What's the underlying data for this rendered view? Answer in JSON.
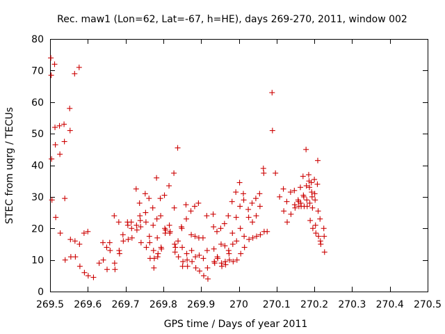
{
  "chart_data": {
    "type": "scatter",
    "title": "Rec. maw1 (Lon=62, Lat=-67, h=HE), days 269-270, 2011, window 002",
    "xlabel": "GPS time / Days of year 2011",
    "ylabel": "STEC from uqrg / TECUs",
    "xlim": [
      269.5,
      270.5
    ],
    "ylim": [
      0,
      80
    ],
    "x_ticks": [
      269.5,
      269.6,
      269.7,
      269.8,
      269.9,
      270.0,
      270.1,
      270.2,
      270.3,
      270.4,
      270.5
    ],
    "x_tick_labels": [
      "269.5",
      "269.6",
      "269.7",
      "269.8",
      "269.9",
      "270",
      "270.1",
      "270.2",
      "270.3",
      "270.4",
      "270.5"
    ],
    "y_ticks": [
      0,
      10,
      20,
      30,
      40,
      50,
      60,
      70,
      80
    ],
    "y_tick_labels": [
      "0",
      "10",
      "20",
      "30",
      "40",
      "50",
      "60",
      "70",
      "80"
    ],
    "grid": false,
    "marker": "plus",
    "marker_color": "#cc0000",
    "series": [
      {
        "points": [
          [
            269.502,
            74.0
          ],
          [
            269.503,
            68.5
          ],
          [
            269.504,
            42.0
          ],
          [
            269.505,
            29.0
          ],
          [
            269.512,
            72.0
          ],
          [
            269.513,
            52.0
          ],
          [
            269.514,
            46.5
          ],
          [
            269.515,
            23.5
          ],
          [
            269.525,
            52.5
          ],
          [
            269.526,
            43.5
          ],
          [
            269.527,
            18.5
          ],
          [
            269.537,
            53.0
          ],
          [
            269.538,
            47.5
          ],
          [
            269.539,
            29.5
          ],
          [
            269.54,
            10.0
          ],
          [
            269.552,
            58.0
          ],
          [
            269.553,
            51.0
          ],
          [
            269.554,
            16.5
          ],
          [
            269.555,
            11.0
          ],
          [
            269.565,
            69.0
          ],
          [
            269.566,
            16.0
          ],
          [
            269.567,
            11.0
          ],
          [
            269.577,
            71.0
          ],
          [
            269.578,
            15.0
          ],
          [
            269.579,
            8.0
          ],
          [
            269.59,
            18.5
          ],
          [
            269.591,
            6.0
          ],
          [
            269.6,
            19.0
          ],
          [
            269.601,
            5.0
          ],
          [
            269.615,
            4.5
          ],
          [
            269.63,
            9.0
          ],
          [
            269.64,
            15.5
          ],
          [
            269.641,
            10.0
          ],
          [
            269.65,
            14.0
          ],
          [
            269.651,
            7.0
          ],
          [
            269.658,
            15.5
          ],
          [
            269.659,
            13.0
          ],
          [
            269.67,
            24.0
          ],
          [
            269.671,
            9.0
          ],
          [
            269.672,
            7.0
          ],
          [
            269.682,
            22.0
          ],
          [
            269.683,
            13.0
          ],
          [
            269.684,
            12.0
          ],
          [
            269.693,
            18.0
          ],
          [
            269.694,
            16.0
          ],
          [
            269.705,
            22.0
          ],
          [
            269.706,
            21.0
          ],
          [
            269.707,
            16.5
          ],
          [
            269.715,
            22.0
          ],
          [
            269.716,
            20.0
          ],
          [
            269.717,
            17.0
          ],
          [
            269.728,
            32.5
          ],
          [
            269.729,
            21.0
          ],
          [
            269.73,
            19.5
          ],
          [
            269.737,
            28.0
          ],
          [
            269.738,
            24.0
          ],
          [
            269.739,
            22.5
          ],
          [
            269.74,
            20.5
          ],
          [
            269.741,
            15.5
          ],
          [
            269.752,
            31.0
          ],
          [
            269.753,
            25.0
          ],
          [
            269.754,
            22.0
          ],
          [
            269.755,
            14.0
          ],
          [
            269.762,
            29.5
          ],
          [
            269.763,
            17.5
          ],
          [
            269.764,
            15.5
          ],
          [
            269.765,
            10.5
          ],
          [
            269.772,
            26.5
          ],
          [
            269.773,
            21.0
          ],
          [
            269.774,
            13.0
          ],
          [
            269.775,
            7.5
          ],
          [
            269.776,
            10.5
          ],
          [
            269.782,
            36.0
          ],
          [
            269.783,
            23.0
          ],
          [
            269.784,
            17.0
          ],
          [
            269.785,
            11.0
          ],
          [
            269.786,
            12.0
          ],
          [
            269.792,
            29.5
          ],
          [
            269.793,
            24.0
          ],
          [
            269.794,
            14.0
          ],
          [
            269.795,
            13.5
          ],
          [
            269.803,
            30.5
          ],
          [
            269.804,
            20.0
          ],
          [
            269.805,
            18.5
          ],
          [
            269.806,
            19.5
          ],
          [
            269.815,
            33.5
          ],
          [
            269.816,
            21.0
          ],
          [
            269.817,
            18.5
          ],
          [
            269.818,
            19.0
          ],
          [
            269.828,
            37.5
          ],
          [
            269.829,
            26.5
          ],
          [
            269.83,
            15.0
          ],
          [
            269.831,
            12.5
          ],
          [
            269.832,
            14.0
          ],
          [
            269.838,
            45.5
          ],
          [
            269.839,
            16.0
          ],
          [
            269.84,
            11.0
          ],
          [
            269.848,
            20.5
          ],
          [
            269.849,
            20.0
          ],
          [
            269.85,
            14.0
          ],
          [
            269.851,
            8.0
          ],
          [
            269.852,
            9.5
          ],
          [
            269.86,
            27.5
          ],
          [
            269.861,
            23.0
          ],
          [
            269.862,
            12.0
          ],
          [
            269.863,
            10.0
          ],
          [
            269.864,
            8.0
          ],
          [
            269.873,
            25.5
          ],
          [
            269.874,
            18.0
          ],
          [
            269.875,
            13.0
          ],
          [
            269.876,
            9.5
          ],
          [
            269.883,
            27.0
          ],
          [
            269.884,
            17.5
          ],
          [
            269.885,
            11.0
          ],
          [
            269.886,
            7.5
          ],
          [
            269.893,
            28.0
          ],
          [
            269.894,
            17.0
          ],
          [
            269.895,
            11.5
          ],
          [
            269.896,
            6.5
          ],
          [
            269.905,
            17.0
          ],
          [
            269.906,
            10.5
          ],
          [
            269.907,
            5.0
          ],
          [
            269.915,
            24.0
          ],
          [
            269.916,
            13.0
          ],
          [
            269.917,
            7.5
          ],
          [
            269.918,
            4.0
          ],
          [
            269.932,
            24.5
          ],
          [
            269.933,
            20.5
          ],
          [
            269.934,
            13.5
          ],
          [
            269.935,
            9.5
          ],
          [
            269.936,
            9.0
          ],
          [
            269.942,
            19.0
          ],
          [
            269.943,
            11.0
          ],
          [
            269.944,
            10.5
          ],
          [
            269.952,
            20.0
          ],
          [
            269.953,
            15.0
          ],
          [
            269.954,
            9.0
          ],
          [
            269.955,
            8.0
          ],
          [
            269.962,
            21.5
          ],
          [
            269.963,
            14.5
          ],
          [
            269.964,
            9.5
          ],
          [
            269.965,
            8.5
          ],
          [
            269.972,
            24.0
          ],
          [
            269.973,
            13.0
          ],
          [
            269.974,
            12.0
          ],
          [
            269.975,
            10.0
          ],
          [
            269.982,
            28.5
          ],
          [
            269.983,
            18.5
          ],
          [
            269.984,
            15.0
          ],
          [
            269.985,
            9.5
          ],
          [
            269.992,
            31.5
          ],
          [
            269.993,
            23.5
          ],
          [
            269.994,
            16.0
          ],
          [
            269.995,
            10.0
          ],
          [
            270.002,
            34.5
          ],
          [
            270.003,
            27.0
          ],
          [
            270.004,
            20.0
          ],
          [
            270.005,
            12.0
          ],
          [
            270.012,
            31.0
          ],
          [
            270.013,
            29.0
          ],
          [
            270.014,
            17.5
          ],
          [
            270.015,
            14.0
          ],
          [
            270.025,
            26.0
          ],
          [
            270.026,
            23.5
          ],
          [
            270.027,
            16.5
          ],
          [
            270.035,
            28.0
          ],
          [
            270.036,
            22.0
          ],
          [
            270.037,
            17.0
          ],
          [
            270.045,
            29.5
          ],
          [
            270.046,
            24.0
          ],
          [
            270.047,
            17.5
          ],
          [
            270.055,
            31.0
          ],
          [
            270.056,
            27.0
          ],
          [
            270.057,
            18.0
          ],
          [
            270.065,
            39.0
          ],
          [
            270.066,
            37.5
          ],
          [
            270.067,
            19.0
          ],
          [
            270.075,
            19.0
          ],
          [
            270.088,
            63.0
          ],
          [
            270.089,
            51.0
          ],
          [
            270.097,
            37.5
          ],
          [
            270.108,
            30.0
          ],
          [
            270.118,
            32.5
          ],
          [
            270.119,
            25.5
          ],
          [
            270.127,
            28.5
          ],
          [
            270.128,
            22.0
          ],
          [
            270.137,
            31.5
          ],
          [
            270.138,
            24.5
          ],
          [
            270.147,
            32.0
          ],
          [
            270.148,
            27.5
          ],
          [
            270.149,
            26.5
          ],
          [
            270.157,
            29.0
          ],
          [
            270.158,
            28.5
          ],
          [
            270.159,
            27.0
          ],
          [
            270.163,
            33.0
          ],
          [
            270.164,
            28.0
          ],
          [
            270.165,
            27.0
          ],
          [
            270.17,
            36.5
          ],
          [
            270.171,
            30.5
          ],
          [
            270.172,
            30.0
          ],
          [
            270.173,
            27.0
          ],
          [
            270.178,
            45.0
          ],
          [
            270.179,
            33.5
          ],
          [
            270.18,
            29.0
          ],
          [
            270.181,
            27.0
          ],
          [
            270.185,
            37.0
          ],
          [
            270.186,
            35.0
          ],
          [
            270.187,
            33.0
          ],
          [
            270.188,
            28.0
          ],
          [
            270.189,
            22.5
          ],
          [
            270.192,
            34.5
          ],
          [
            270.193,
            31.5
          ],
          [
            270.194,
            30.0
          ],
          [
            270.195,
            26.5
          ],
          [
            270.196,
            20.0
          ],
          [
            270.2,
            35.5
          ],
          [
            270.201,
            31.0
          ],
          [
            270.202,
            29.0
          ],
          [
            270.203,
            21.0
          ],
          [
            270.204,
            18.5
          ],
          [
            270.208,
            34.0
          ],
          [
            270.209,
            41.5
          ],
          [
            270.21,
            25.5
          ],
          [
            270.211,
            17.5
          ],
          [
            270.215,
            23.0
          ],
          [
            270.216,
            16.0
          ],
          [
            270.217,
            15.0
          ],
          [
            270.225,
            20.0
          ],
          [
            270.226,
            17.5
          ],
          [
            270.227,
            12.5
          ]
        ]
      }
    ]
  }
}
